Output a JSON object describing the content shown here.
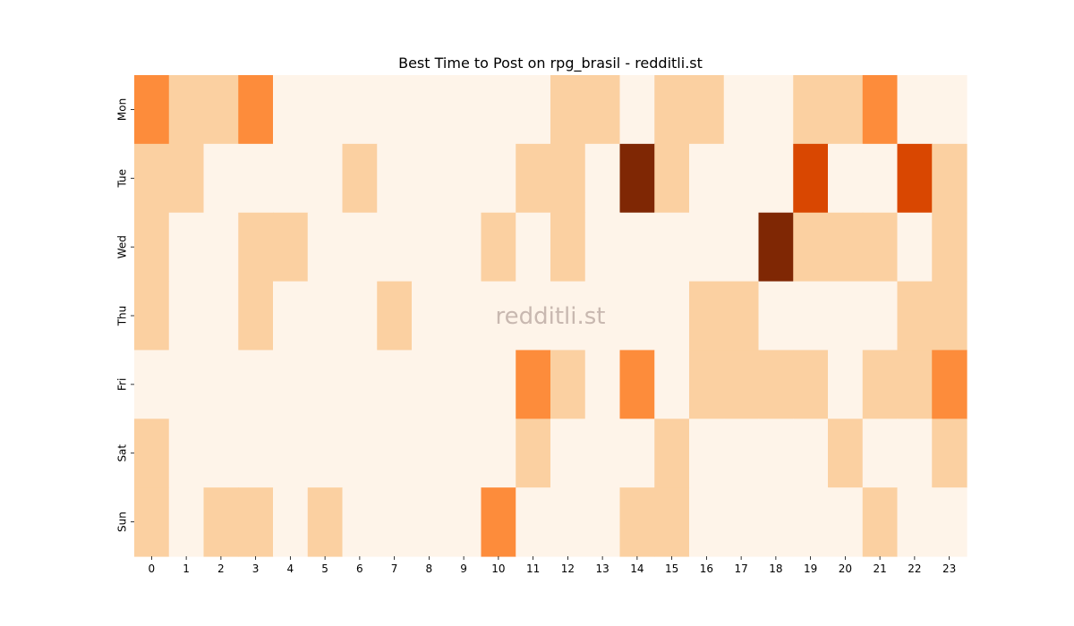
{
  "chart_data": {
    "type": "heatmap",
    "title": "Best Time to Post on rpg_brasil - redditli.st",
    "xlabel": "",
    "ylabel": "",
    "x_categories": [
      "0",
      "1",
      "2",
      "3",
      "4",
      "5",
      "6",
      "7",
      "8",
      "9",
      "10",
      "11",
      "12",
      "13",
      "14",
      "15",
      "16",
      "17",
      "18",
      "19",
      "20",
      "21",
      "22",
      "23"
    ],
    "y_categories": [
      "Mon",
      "Tue",
      "Wed",
      "Thu",
      "Fri",
      "Sat",
      "Sun"
    ],
    "values": [
      [
        2,
        1,
        1,
        2,
        0,
        0,
        0,
        0,
        0,
        0,
        0,
        0,
        1,
        1,
        0,
        1,
        1,
        0,
        0,
        1,
        1,
        2,
        0,
        0
      ],
      [
        1,
        1,
        0,
        0,
        0,
        0,
        1,
        0,
        0,
        0,
        0,
        1,
        1,
        0,
        4,
        1,
        0,
        0,
        0,
        3,
        0,
        0,
        3,
        1
      ],
      [
        1,
        0,
        0,
        1,
        1,
        0,
        0,
        0,
        0,
        0,
        1,
        0,
        1,
        0,
        0,
        0,
        0,
        0,
        4,
        1,
        1,
        1,
        0,
        1
      ],
      [
        1,
        0,
        0,
        1,
        0,
        0,
        0,
        1,
        0,
        0,
        0,
        0,
        0,
        0,
        0,
        0,
        1,
        1,
        0,
        0,
        0,
        0,
        1,
        1
      ],
      [
        0,
        0,
        0,
        0,
        0,
        0,
        0,
        0,
        0,
        0,
        0,
        2,
        1,
        0,
        2,
        0,
        1,
        1,
        1,
        1,
        0,
        1,
        1,
        2
      ],
      [
        1,
        0,
        0,
        0,
        0,
        0,
        0,
        0,
        0,
        0,
        0,
        1,
        0,
        0,
        0,
        1,
        0,
        0,
        0,
        0,
        1,
        0,
        0,
        1
      ],
      [
        1,
        0,
        1,
        1,
        0,
        1,
        0,
        0,
        0,
        0,
        2,
        0,
        0,
        0,
        1,
        1,
        0,
        0,
        0,
        0,
        0,
        1,
        0,
        0
      ]
    ],
    "value_range": [
      0,
      4
    ],
    "colormap": "Oranges",
    "colors": [
      "#fef4e9",
      "#fbd0a1",
      "#fd8c3b",
      "#d94701",
      "#7f2704"
    ],
    "watermark": "redditli.st"
  }
}
